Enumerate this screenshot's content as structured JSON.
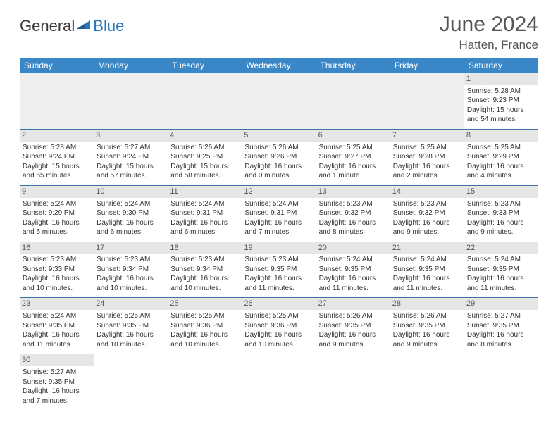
{
  "logo": {
    "general": "General",
    "blue": "Blue"
  },
  "title": "June 2024",
  "location": "Hatten, France",
  "colors": {
    "header_bg": "#3a87c8",
    "header_text": "#ffffff",
    "daynum_bg": "#e6e6e6",
    "border": "#3a74a8",
    "logo_blue": "#2876b8"
  },
  "weekdays": [
    "Sunday",
    "Monday",
    "Tuesday",
    "Wednesday",
    "Thursday",
    "Friday",
    "Saturday"
  ],
  "weeks": [
    [
      null,
      null,
      null,
      null,
      null,
      null,
      {
        "n": "1",
        "sr": "Sunrise: 5:28 AM",
        "ss": "Sunset: 9:23 PM",
        "dl": "Daylight: 15 hours and 54 minutes."
      }
    ],
    [
      {
        "n": "2",
        "sr": "Sunrise: 5:28 AM",
        "ss": "Sunset: 9:24 PM",
        "dl": "Daylight: 15 hours and 55 minutes."
      },
      {
        "n": "3",
        "sr": "Sunrise: 5:27 AM",
        "ss": "Sunset: 9:24 PM",
        "dl": "Daylight: 15 hours and 57 minutes."
      },
      {
        "n": "4",
        "sr": "Sunrise: 5:26 AM",
        "ss": "Sunset: 9:25 PM",
        "dl": "Daylight: 15 hours and 58 minutes."
      },
      {
        "n": "5",
        "sr": "Sunrise: 5:26 AM",
        "ss": "Sunset: 9:26 PM",
        "dl": "Daylight: 16 hours and 0 minutes."
      },
      {
        "n": "6",
        "sr": "Sunrise: 5:25 AM",
        "ss": "Sunset: 9:27 PM",
        "dl": "Daylight: 16 hours and 1 minute."
      },
      {
        "n": "7",
        "sr": "Sunrise: 5:25 AM",
        "ss": "Sunset: 9:28 PM",
        "dl": "Daylight: 16 hours and 2 minutes."
      },
      {
        "n": "8",
        "sr": "Sunrise: 5:25 AM",
        "ss": "Sunset: 9:29 PM",
        "dl": "Daylight: 16 hours and 4 minutes."
      }
    ],
    [
      {
        "n": "9",
        "sr": "Sunrise: 5:24 AM",
        "ss": "Sunset: 9:29 PM",
        "dl": "Daylight: 16 hours and 5 minutes."
      },
      {
        "n": "10",
        "sr": "Sunrise: 5:24 AM",
        "ss": "Sunset: 9:30 PM",
        "dl": "Daylight: 16 hours and 6 minutes."
      },
      {
        "n": "11",
        "sr": "Sunrise: 5:24 AM",
        "ss": "Sunset: 9:31 PM",
        "dl": "Daylight: 16 hours and 6 minutes."
      },
      {
        "n": "12",
        "sr": "Sunrise: 5:24 AM",
        "ss": "Sunset: 9:31 PM",
        "dl": "Daylight: 16 hours and 7 minutes."
      },
      {
        "n": "13",
        "sr": "Sunrise: 5:23 AM",
        "ss": "Sunset: 9:32 PM",
        "dl": "Daylight: 16 hours and 8 minutes."
      },
      {
        "n": "14",
        "sr": "Sunrise: 5:23 AM",
        "ss": "Sunset: 9:32 PM",
        "dl": "Daylight: 16 hours and 9 minutes."
      },
      {
        "n": "15",
        "sr": "Sunrise: 5:23 AM",
        "ss": "Sunset: 9:33 PM",
        "dl": "Daylight: 16 hours and 9 minutes."
      }
    ],
    [
      {
        "n": "16",
        "sr": "Sunrise: 5:23 AM",
        "ss": "Sunset: 9:33 PM",
        "dl": "Daylight: 16 hours and 10 minutes."
      },
      {
        "n": "17",
        "sr": "Sunrise: 5:23 AM",
        "ss": "Sunset: 9:34 PM",
        "dl": "Daylight: 16 hours and 10 minutes."
      },
      {
        "n": "18",
        "sr": "Sunrise: 5:23 AM",
        "ss": "Sunset: 9:34 PM",
        "dl": "Daylight: 16 hours and 10 minutes."
      },
      {
        "n": "19",
        "sr": "Sunrise: 5:23 AM",
        "ss": "Sunset: 9:35 PM",
        "dl": "Daylight: 16 hours and 11 minutes."
      },
      {
        "n": "20",
        "sr": "Sunrise: 5:24 AM",
        "ss": "Sunset: 9:35 PM",
        "dl": "Daylight: 16 hours and 11 minutes."
      },
      {
        "n": "21",
        "sr": "Sunrise: 5:24 AM",
        "ss": "Sunset: 9:35 PM",
        "dl": "Daylight: 16 hours and 11 minutes."
      },
      {
        "n": "22",
        "sr": "Sunrise: 5:24 AM",
        "ss": "Sunset: 9:35 PM",
        "dl": "Daylight: 16 hours and 11 minutes."
      }
    ],
    [
      {
        "n": "23",
        "sr": "Sunrise: 5:24 AM",
        "ss": "Sunset: 9:35 PM",
        "dl": "Daylight: 16 hours and 11 minutes."
      },
      {
        "n": "24",
        "sr": "Sunrise: 5:25 AM",
        "ss": "Sunset: 9:35 PM",
        "dl": "Daylight: 16 hours and 10 minutes."
      },
      {
        "n": "25",
        "sr": "Sunrise: 5:25 AM",
        "ss": "Sunset: 9:36 PM",
        "dl": "Daylight: 16 hours and 10 minutes."
      },
      {
        "n": "26",
        "sr": "Sunrise: 5:25 AM",
        "ss": "Sunset: 9:36 PM",
        "dl": "Daylight: 16 hours and 10 minutes."
      },
      {
        "n": "27",
        "sr": "Sunrise: 5:26 AM",
        "ss": "Sunset: 9:35 PM",
        "dl": "Daylight: 16 hours and 9 minutes."
      },
      {
        "n": "28",
        "sr": "Sunrise: 5:26 AM",
        "ss": "Sunset: 9:35 PM",
        "dl": "Daylight: 16 hours and 9 minutes."
      },
      {
        "n": "29",
        "sr": "Sunrise: 5:27 AM",
        "ss": "Sunset: 9:35 PM",
        "dl": "Daylight: 16 hours and 8 minutes."
      }
    ],
    [
      {
        "n": "30",
        "sr": "Sunrise: 5:27 AM",
        "ss": "Sunset: 9:35 PM",
        "dl": "Daylight: 16 hours and 7 minutes."
      },
      null,
      null,
      null,
      null,
      null,
      null
    ]
  ]
}
